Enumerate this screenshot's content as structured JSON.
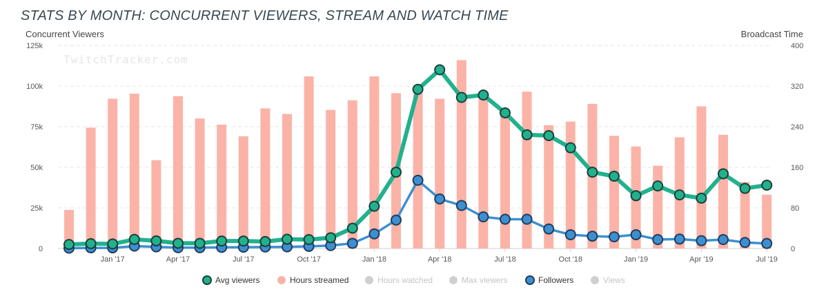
{
  "title": "STATS BY MONTH: CONCURRENT VIEWERS, STREAM AND WATCH TIME",
  "watermark": "TwitchTracker.com",
  "colors": {
    "avg_viewers": "#22b18d",
    "avg_viewers_stroke": "#1a3e3a",
    "hours_streamed": "#fbb3a8",
    "followers": "#3d8fd1",
    "followers_stroke": "#1f3d5c",
    "disabled": "#cfcfcf"
  },
  "chart_data": {
    "type": "bar",
    "ylabel": "Concurrent Viewers",
    "y2label": "Broadcast Time",
    "ylim": [
      0,
      125000
    ],
    "y2lim": [
      0,
      400
    ],
    "y_ticks": [
      "0",
      "25k",
      "50k",
      "75k",
      "100k",
      "125k"
    ],
    "y2_ticks": [
      "0",
      "80",
      "160",
      "240",
      "320",
      "400"
    ],
    "x_ticks": [
      "Jan '17",
      "Apr '17",
      "Jul '17",
      "Oct '17",
      "Jan '18",
      "Apr '18",
      "Jul '18",
      "Oct '18",
      "Jan '19",
      "Apr '19",
      "Jul '19"
    ],
    "categories": [
      "Nov '16",
      "Dec '16",
      "Jan '17",
      "Feb '17",
      "Mar '17",
      "Apr '17",
      "May '17",
      "Jun '17",
      "Jul '17",
      "Aug '17",
      "Sep '17",
      "Oct '17",
      "Nov '17",
      "Dec '17",
      "Jan '18",
      "Feb '18",
      "Mar '18",
      "Apr '18",
      "May '18",
      "Jun '18",
      "Jul '18",
      "Aug '18",
      "Sep '18",
      "Oct '18",
      "Nov '18",
      "Dec '18",
      "Jan '19",
      "Feb '19",
      "Mar '19",
      "Apr '19",
      "May '19",
      "Jun '19",
      "Jul '19"
    ],
    "series": [
      {
        "name": "Hours streamed",
        "axis": "right",
        "kind": "bar",
        "values": [
          76,
          238,
          295,
          305,
          174,
          300,
          256,
          244,
          221,
          276,
          265,
          339,
          273,
          292,
          339,
          306,
          306,
          295,
          371,
          298,
          268,
          309,
          243,
          250,
          285,
          222,
          201,
          163,
          219,
          280,
          224,
          131,
          106
        ]
      },
      {
        "name": "Avg viewers",
        "axis": "left",
        "kind": "line",
        "values": [
          2500,
          3000,
          2800,
          5600,
          4700,
          3200,
          3200,
          4600,
          4600,
          4300,
          5700,
          5500,
          6600,
          12500,
          26000,
          47000,
          98000,
          110000,
          93000,
          94500,
          83500,
          70000,
          69500,
          62000,
          47000,
          44500,
          32500,
          38500,
          33000,
          31000,
          46000,
          37000,
          39000
        ]
      },
      {
        "name": "Followers",
        "axis": "left",
        "kind": "line",
        "values": [
          200,
          400,
          400,
          1500,
          1000,
          500,
          500,
          700,
          800,
          900,
          1000,
          1300,
          1800,
          3200,
          9000,
          17500,
          42000,
          30500,
          26500,
          19500,
          18000,
          18000,
          12000,
          8500,
          7600,
          7200,
          8500,
          5500,
          5800,
          4800,
          5500,
          3700,
          3100
        ]
      }
    ],
    "legend": {
      "position": "bottom",
      "items": [
        {
          "label": "Avg viewers",
          "enabled": true
        },
        {
          "label": "Hours streamed",
          "enabled": true
        },
        {
          "label": "Hours watched",
          "enabled": false
        },
        {
          "label": "Max viewers",
          "enabled": false
        },
        {
          "label": "Followers",
          "enabled": true
        },
        {
          "label": "Views",
          "enabled": false
        }
      ]
    },
    "grid": true
  }
}
